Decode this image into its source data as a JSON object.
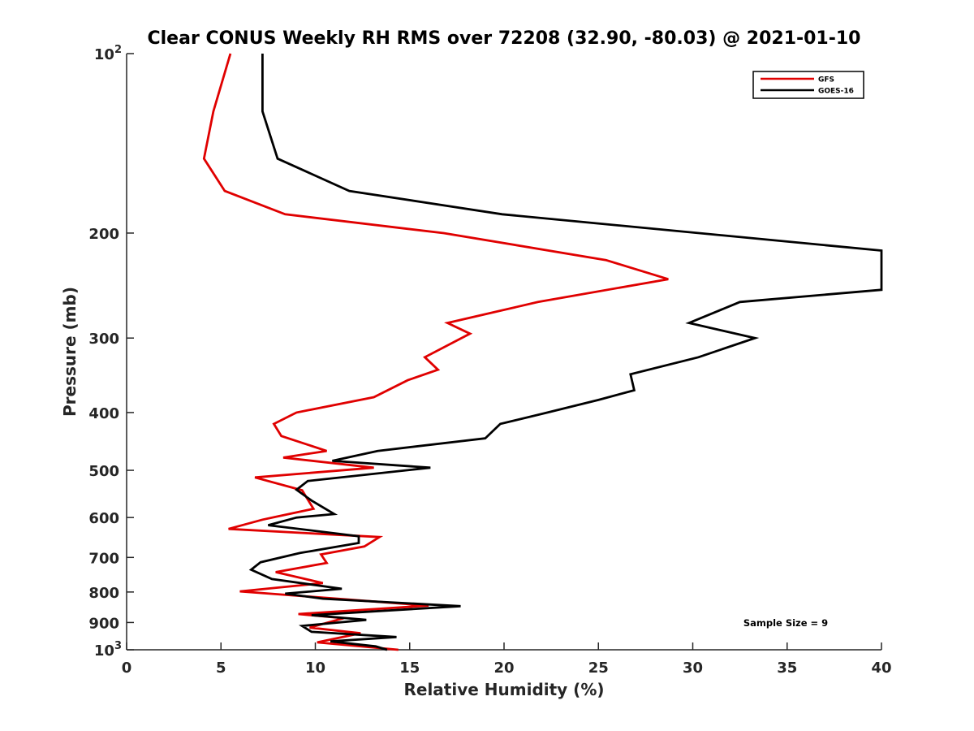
{
  "chart_data": {
    "type": "line",
    "title": "Clear CONUS Weekly RH RMS over 72208 (32.90, -80.03) @ 2021-01-10",
    "xlabel": "Relative Humidity (%)",
    "ylabel": "Pressure (mb)",
    "xlim": [
      0,
      40
    ],
    "ylim": [
      100,
      1000
    ],
    "y_scale": "log",
    "y_reversed": true,
    "x_ticks": [
      0,
      5,
      10,
      15,
      20,
      25,
      30,
      35,
      40
    ],
    "y_ticks": [
      {
        "value": 100,
        "label": "10",
        "sup": "2"
      },
      {
        "value": 200,
        "label": "200"
      },
      {
        "value": 300,
        "label": "300"
      },
      {
        "value": 400,
        "label": "400"
      },
      {
        "value": 500,
        "label": "500"
      },
      {
        "value": 600,
        "label": "600"
      },
      {
        "value": 700,
        "label": "700"
      },
      {
        "value": 800,
        "label": "800"
      },
      {
        "value": 900,
        "label": "900"
      },
      {
        "value": 1000,
        "label": "10",
        "sup": "3"
      }
    ],
    "grid": false,
    "legend_position": "top-right",
    "annotation": "Sample Size = 9",
    "series": [
      {
        "name": "GFS",
        "color": "#e00000",
        "points": [
          [
            5.5,
            100
          ],
          [
            4.6,
            125
          ],
          [
            4.1,
            150
          ],
          [
            5.2,
            170
          ],
          [
            8.4,
            186
          ],
          [
            16.8,
            200
          ],
          [
            25.4,
            222
          ],
          [
            28.7,
            239
          ],
          [
            21.8,
            261
          ],
          [
            17.0,
            283
          ],
          [
            18.2,
            295
          ],
          [
            15.8,
            323
          ],
          [
            16.5,
            339
          ],
          [
            14.9,
            353
          ],
          [
            13.1,
            377
          ],
          [
            9.0,
            400
          ],
          [
            7.8,
            418
          ],
          [
            8.2,
            438
          ],
          [
            10.6,
            464
          ],
          [
            8.3,
            476
          ],
          [
            13.1,
            495
          ],
          [
            6.8,
            514
          ],
          [
            9.3,
            540
          ],
          [
            9.9,
            580
          ],
          [
            7.2,
            605
          ],
          [
            5.4,
            627
          ],
          [
            13.4,
            647
          ],
          [
            12.6,
            671
          ],
          [
            10.3,
            692
          ],
          [
            10.6,
            715
          ],
          [
            7.9,
            741
          ],
          [
            10.4,
            773
          ],
          [
            6.0,
            798
          ],
          [
            16.0,
            843
          ],
          [
            9.1,
            871
          ],
          [
            11.5,
            885
          ],
          [
            9.7,
            918
          ],
          [
            12.4,
            938
          ],
          [
            10.1,
            972
          ],
          [
            14.4,
            1000
          ]
        ]
      },
      {
        "name": "GOES-16",
        "color": "#000000",
        "points": [
          [
            7.2,
            100
          ],
          [
            7.2,
            125
          ],
          [
            8.0,
            150
          ],
          [
            11.8,
            170
          ],
          [
            19.9,
            186
          ],
          [
            40.0,
            214
          ],
          [
            40.0,
            249
          ],
          [
            32.5,
            261
          ],
          [
            29.8,
            283
          ],
          [
            33.3,
            300
          ],
          [
            30.3,
            323
          ],
          [
            26.7,
            345
          ],
          [
            26.9,
            367
          ],
          [
            25.0,
            381
          ],
          [
            22.3,
            400
          ],
          [
            19.8,
            418
          ],
          [
            19.0,
            442
          ],
          [
            13.3,
            464
          ],
          [
            10.9,
            482
          ],
          [
            16.1,
            495
          ],
          [
            9.6,
            521
          ],
          [
            9.0,
            539
          ],
          [
            9.8,
            562
          ],
          [
            11.0,
            592
          ],
          [
            9.0,
            600
          ],
          [
            7.5,
            618
          ],
          [
            12.3,
            645
          ],
          [
            12.3,
            662
          ],
          [
            9.2,
            688
          ],
          [
            7.1,
            713
          ],
          [
            6.6,
            734
          ],
          [
            7.7,
            761
          ],
          [
            11.4,
            790
          ],
          [
            8.4,
            805
          ],
          [
            10.4,
            821
          ],
          [
            17.7,
            845
          ],
          [
            9.8,
            875
          ],
          [
            12.7,
            891
          ],
          [
            9.3,
            912
          ],
          [
            9.8,
            933
          ],
          [
            14.3,
            952
          ],
          [
            10.8,
            968
          ],
          [
            13.2,
            987
          ],
          [
            13.8,
            1000
          ]
        ]
      }
    ]
  }
}
